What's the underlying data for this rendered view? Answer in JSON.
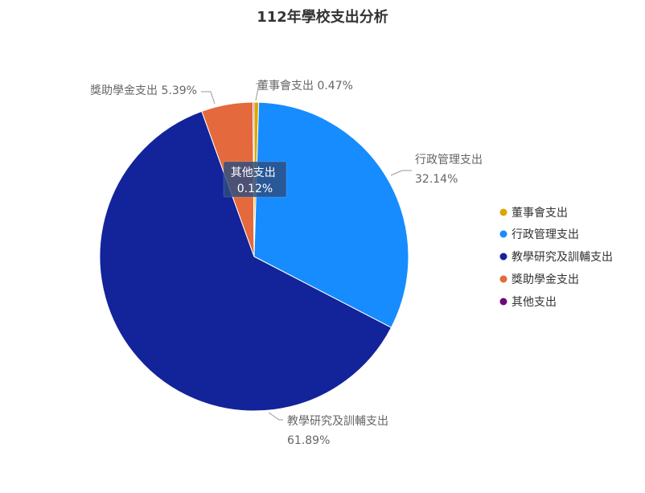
{
  "chart_data": {
    "type": "pie",
    "title": "112年學校支出分析",
    "categories": [
      "董事會支出",
      "行政管理支出",
      "教學研究及訓輔支出",
      "獎助學金支出",
      "其他支出"
    ],
    "values": [
      0.47,
      32.14,
      61.89,
      5.39,
      0.12
    ],
    "value_suffix": "%",
    "colors": [
      "#d8a800",
      "#178cff",
      "#13239a",
      "#e4693c",
      "#6a0a77"
    ],
    "legend_position": "right",
    "labels": [
      {
        "category": "董事會支出",
        "text": "董事會支出 0.47%"
      },
      {
        "category": "行政管理支出",
        "line1": "行政管理支出",
        "line2": "32.14%"
      },
      {
        "category": "教學研究及訓輔支出",
        "line1": "教學研究及訓輔支出",
        "line2": "61.89%"
      },
      {
        "category": "獎助學金支出",
        "text": "獎助學金支出 5.39%"
      },
      {
        "category": "其他支出",
        "line1": "其他支出",
        "line2": "0.12%"
      }
    ]
  }
}
